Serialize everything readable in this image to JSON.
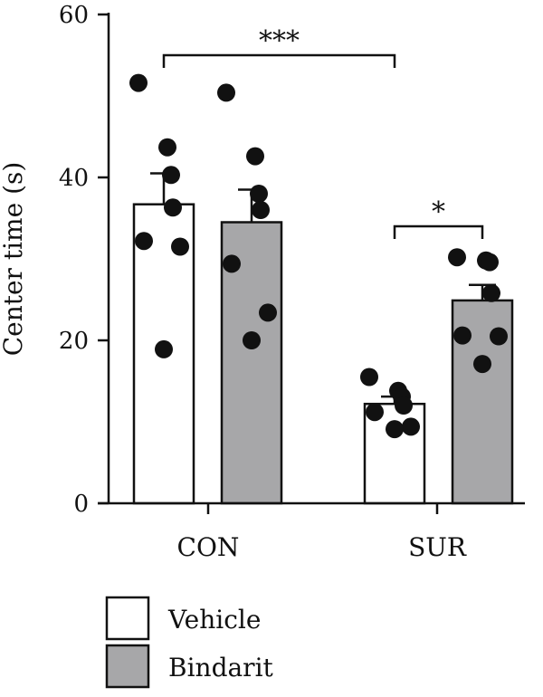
{
  "chart_data": {
    "type": "bar",
    "ylabel": "Center time (s)",
    "ylim": [
      0,
      60
    ],
    "yticks": [
      0,
      20,
      40,
      60
    ],
    "groups": [
      "CON",
      "SUR"
    ],
    "series": [
      {
        "name": "Vehicle",
        "color": "#ffffff",
        "means": [
          36.7,
          12.2
        ],
        "sem": [
          3.8,
          0.9
        ],
        "points": [
          [
            51.6,
            43.7,
            40.3,
            36.3,
            32.2,
            31.5,
            18.9
          ],
          [
            15.5,
            13.8,
            13.1,
            12.0,
            11.2,
            9.4,
            9.1
          ]
        ]
      },
      {
        "name": "Bindarit",
        "color": "#a7a7a9",
        "means": [
          34.5,
          24.9
        ],
        "sem": [
          4.0,
          1.9
        ],
        "points": [
          [
            50.4,
            42.6,
            38.0,
            36.0,
            29.4,
            23.4,
            20.0
          ],
          [
            30.2,
            29.8,
            29.6,
            25.8,
            20.6,
            20.5,
            17.1
          ]
        ]
      }
    ],
    "significance": [
      {
        "label": "***",
        "from": "CON-Vehicle",
        "to": "SUR-Vehicle",
        "y": 55
      },
      {
        "label": "*",
        "from": "SUR-Vehicle",
        "to": "SUR-Bindarit",
        "y": 34
      }
    ],
    "legend_position": "bottom-left"
  }
}
